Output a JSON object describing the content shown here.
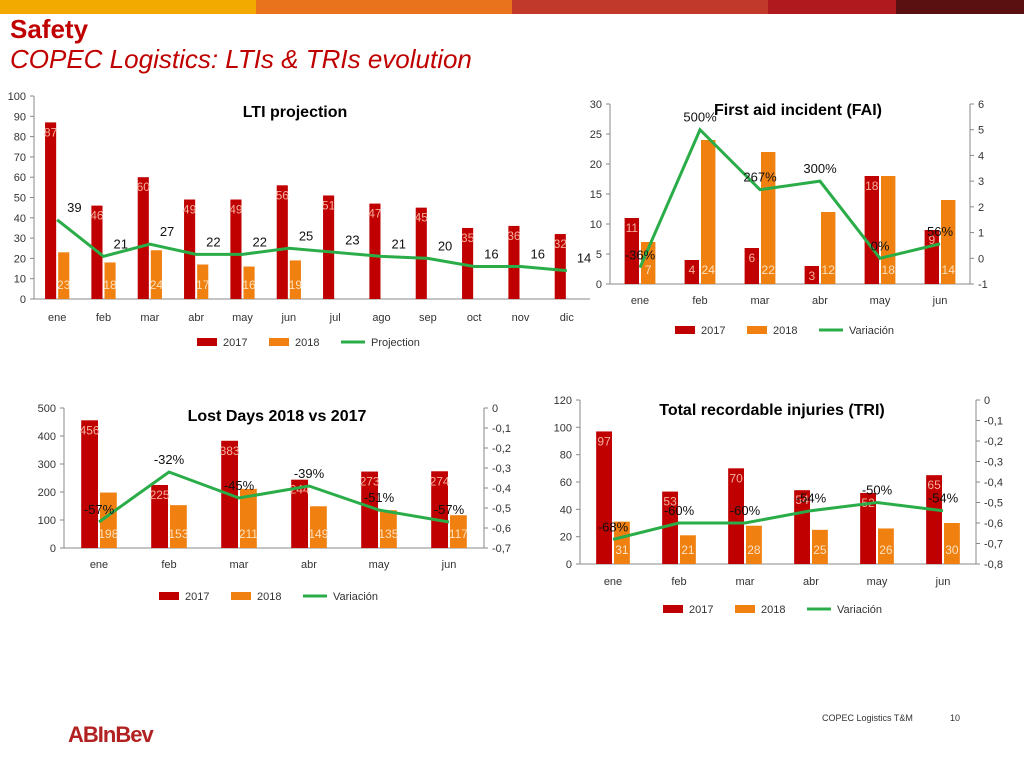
{
  "header": {
    "title": "Safety",
    "subtitle": "COPEC Logistics: LTIs & TRIs evolution",
    "bar_colors": [
      "#f2a900",
      "#e8731c",
      "#c0392b",
      "#b0191e",
      "#5a1010"
    ]
  },
  "footer": {
    "text": "COPEC Logistics T&M",
    "page": "10",
    "logo": "ABInBev"
  },
  "colors": {
    "series2017": "#c00000",
    "series2018": "#f08010",
    "line": "#2aad48"
  },
  "chart_data": [
    {
      "id": "lti",
      "type": "bar",
      "title": "LTI projection",
      "categories": [
        "ene",
        "feb",
        "mar",
        "abr",
        "may",
        "jun",
        "jul",
        "ago",
        "sep",
        "oct",
        "nov",
        "dic"
      ],
      "series": [
        {
          "name": "2017",
          "values": [
            87,
            46,
            60,
            49,
            49,
            56,
            51,
            47,
            45,
            35,
            36,
            32
          ]
        },
        {
          "name": "2018",
          "values": [
            23,
            18,
            24,
            17,
            16,
            19,
            null,
            null,
            null,
            null,
            null,
            null
          ]
        }
      ],
      "line": {
        "name": "Projection",
        "values": [
          39,
          21,
          27,
          22,
          22,
          25,
          23,
          21,
          20,
          16,
          16,
          14
        ]
      },
      "ylim": [
        0,
        100
      ],
      "yticks": [
        0,
        10,
        20,
        30,
        40,
        50,
        60,
        70,
        80,
        90,
        100
      ],
      "legend": [
        "2017",
        "2018",
        "Projection"
      ]
    },
    {
      "id": "fai",
      "type": "bar",
      "title": "First aid incident (FAI)",
      "categories": [
        "ene",
        "feb",
        "mar",
        "abr",
        "may",
        "jun"
      ],
      "series": [
        {
          "name": "2017",
          "values": [
            11,
            4,
            6,
            3,
            18,
            9
          ]
        },
        {
          "name": "2018",
          "values": [
            7,
            24,
            22,
            12,
            18,
            14
          ]
        }
      ],
      "line": {
        "name": "Variación",
        "values": [
          -0.36,
          5,
          2.67,
          3,
          0,
          0.56
        ],
        "labels": [
          "-36%",
          "500%",
          "267%",
          "300%",
          "0%",
          "56%"
        ]
      },
      "ylim": [
        0,
        30
      ],
      "yticks": [
        0,
        5,
        10,
        15,
        20,
        25,
        30
      ],
      "y2lim": [
        -1,
        6
      ],
      "y2ticks": [
        "-1",
        "0",
        "1",
        "2",
        "3",
        "4",
        "5",
        "6"
      ],
      "legend": [
        "2017",
        "2018",
        "Variación"
      ]
    },
    {
      "id": "lost",
      "type": "bar",
      "title": "Lost Days 2018 vs 2017",
      "categories": [
        "ene",
        "feb",
        "mar",
        "abr",
        "may",
        "jun"
      ],
      "series": [
        {
          "name": "2017",
          "values": [
            456,
            225,
            383,
            244,
            273,
            274
          ]
        },
        {
          "name": "2018",
          "values": [
            198,
            153,
            211,
            149,
            135,
            117
          ]
        }
      ],
      "line": {
        "name": "Variación",
        "values": [
          -0.57,
          -0.32,
          -0.45,
          -0.39,
          -0.51,
          -0.57
        ],
        "labels": [
          "-57%",
          "-32%",
          "-45%",
          "-39%",
          "-51%",
          "-57%"
        ]
      },
      "ylim": [
        0,
        500
      ],
      "yticks": [
        0,
        100,
        200,
        300,
        400,
        500
      ],
      "y2lim": [
        -0.7,
        0
      ],
      "y2ticks": [
        "-0,7",
        "-0,6",
        "-0,5",
        "-0,4",
        "-0,3",
        "-0,2",
        "-0,1",
        "0"
      ],
      "legend": [
        "2017",
        "2018",
        "Variación"
      ]
    },
    {
      "id": "tri",
      "type": "bar",
      "title": "Total recordable injuries (TRI)",
      "categories": [
        "ene",
        "feb",
        "mar",
        "abr",
        "may",
        "jun"
      ],
      "series": [
        {
          "name": "2017",
          "values": [
            97,
            53,
            70,
            54,
            52,
            65
          ]
        },
        {
          "name": "2018",
          "values": [
            31,
            21,
            28,
            25,
            26,
            30
          ]
        }
      ],
      "line": {
        "name": "Variación",
        "values": [
          -0.68,
          -0.6,
          -0.6,
          -0.54,
          -0.5,
          -0.54
        ],
        "labels": [
          "-68%",
          "-60%",
          "-60%",
          "-54%",
          "-50%",
          "-54%"
        ]
      },
      "ylim": [
        0,
        120
      ],
      "yticks": [
        0,
        20,
        40,
        60,
        80,
        100,
        120
      ],
      "y2lim": [
        -0.8,
        0
      ],
      "y2ticks": [
        "-0,8",
        "-0,7",
        "-0,6",
        "-0,5",
        "-0,4",
        "-0,3",
        "-0,2",
        "-0,1",
        "0"
      ],
      "legend": [
        "2017",
        "2018",
        "Variación"
      ]
    }
  ]
}
